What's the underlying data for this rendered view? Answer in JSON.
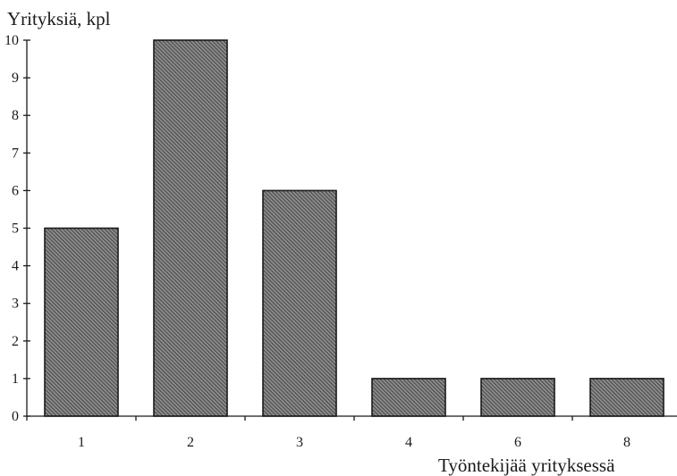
{
  "chart_data": {
    "type": "bar",
    "categories": [
      "1",
      "2",
      "3",
      "4",
      "6",
      "8"
    ],
    "values": [
      5,
      10,
      6,
      1,
      1,
      1
    ],
    "title": "",
    "xlabel": "Työntekijää yrityksessä",
    "ylabel": "Yrityksiä, kpl",
    "ylim": [
      0,
      10
    ],
    "yticks": [
      0,
      1,
      2,
      3,
      4,
      5,
      6,
      7,
      8,
      9,
      10
    ],
    "grid": false,
    "bar_fill": "hatched",
    "colors": {
      "bar_base": "#8a8a8a",
      "hatch": "#2a2a2a",
      "outline": "#1a1a1a"
    }
  }
}
